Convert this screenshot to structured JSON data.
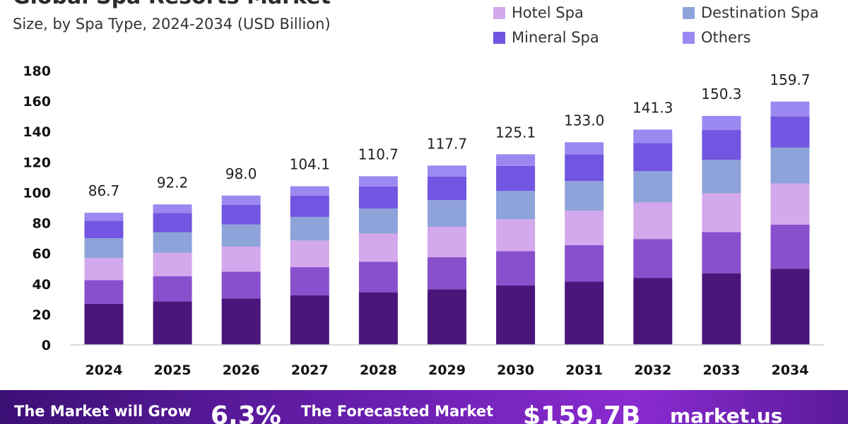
{
  "header": {
    "title": "Global Spa Resorts Market",
    "subtitle": "Size, by Spa Type, 2024-2034 (USD Billion)"
  },
  "colors": {
    "Destination Spa": "#8ea3d9",
    "Hotel Spa": "#d4a8ec",
    "Mineral Spa": "#7255e0",
    "Others": "#9b88f0",
    "series_base": "#4a167c",
    "series_second": "#8850cc",
    "footer_bg": "#5b1a9c"
  },
  "legend": [
    {
      "label": "Hotel Spa",
      "color": "#d4a8ec"
    },
    {
      "label": "Destination Spa",
      "color": "#8ea3d9"
    },
    {
      "label": "Mineral Spa",
      "color": "#7255e0"
    },
    {
      "label": "Others",
      "color": "#9b88f0"
    }
  ],
  "chart_data": {
    "type": "bar",
    "stacked": true,
    "categories": [
      "2024",
      "2025",
      "2026",
      "2027",
      "2028",
      "2029",
      "2030",
      "2031",
      "2032",
      "2033",
      "2034"
    ],
    "series": [
      {
        "color": "#4a167c",
        "values": [
          27,
          28.5,
          30.5,
          32.5,
          34.5,
          36.5,
          39,
          41.5,
          44,
          47,
          50
        ]
      },
      {
        "color": "#8850cc",
        "values": [
          15.5,
          16.5,
          17.5,
          18.5,
          20,
          21,
          22.5,
          24,
          25.5,
          27,
          29
        ]
      },
      {
        "name": "Hotel Spa",
        "color": "#d4a8ec",
        "values": [
          14.5,
          15.5,
          16.5,
          17.5,
          18.5,
          20,
          21,
          22.5,
          24,
          25.5,
          27
        ]
      },
      {
        "name": "Destination Spa",
        "color": "#8ea3d9",
        "values": [
          13,
          13.5,
          14.5,
          15.5,
          16.5,
          17.5,
          18.5,
          19.5,
          20.5,
          22,
          23.5
        ]
      },
      {
        "name": "Mineral Spa",
        "color": "#7255e0",
        "values": [
          11.5,
          12.5,
          13,
          14,
          14.5,
          15.5,
          16.5,
          17.5,
          18.5,
          19.5,
          20.5
        ]
      },
      {
        "name": "Others",
        "color": "#9b88f0",
        "values": [
          5.2,
          5.7,
          6,
          6.1,
          6.7,
          7.2,
          7.6,
          8,
          8.8,
          9.3,
          9.7
        ]
      }
    ],
    "totals": [
      "86.7",
      "92.2",
      "98.0",
      "104.1",
      "110.7",
      "117.7",
      "125.1",
      "133.0",
      "141.3",
      "150.3",
      "159.7"
    ],
    "y_ticks": [
      "0",
      "20",
      "40",
      "60",
      "80",
      "100",
      "120",
      "140",
      "160",
      "180"
    ],
    "ylim": [
      0,
      180
    ],
    "grid": false,
    "legend_position": "top-right"
  },
  "footer": {
    "grow_label": "The Market will Grow",
    "cagr": "6.3%",
    "forecast_label": "The Forecasted Market",
    "forecast_value": "$159.7B",
    "brand": "market.us"
  }
}
